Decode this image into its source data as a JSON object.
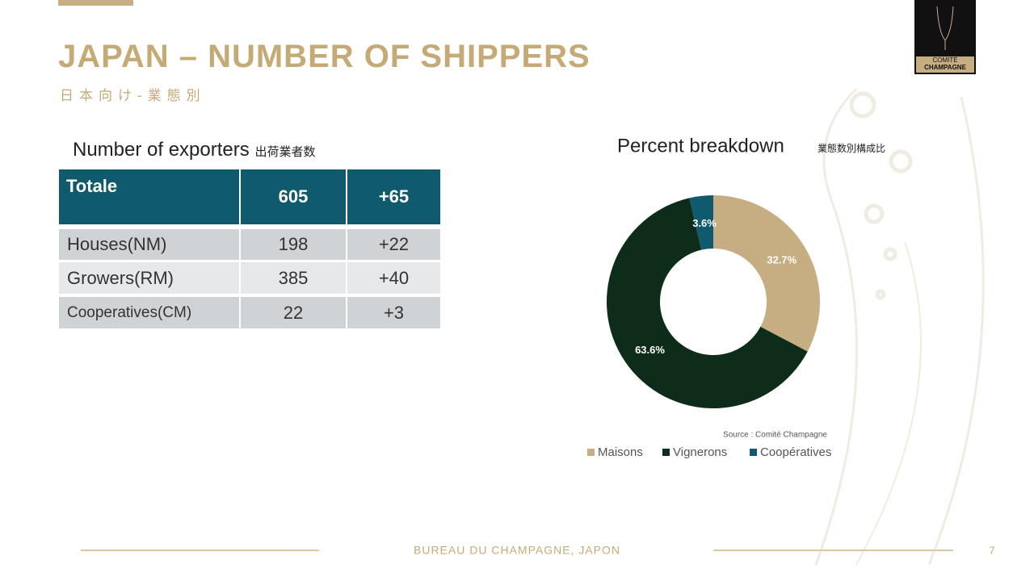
{
  "header": {
    "title": "JAPAN – NUMBER OF SHIPPERS",
    "subtitle": "日本向け-業態別"
  },
  "logo": {
    "line1": "COMITÉ",
    "line2": "CHAMPAGNE"
  },
  "table": {
    "title": "Number of exporters",
    "title_jp": "出荷業者数",
    "header": [
      "Totale",
      "605",
      "+65"
    ],
    "rows": [
      [
        "Houses(NM)",
        "198",
        "+22"
      ],
      [
        "Growers(RM)",
        "385",
        "+40"
      ],
      [
        "Cooperatives(CM)",
        "22",
        "+3"
      ]
    ]
  },
  "chart_data": {
    "type": "donut",
    "title": "Percent breakdown",
    "subtitle": "業態数別構成比",
    "categories": [
      "Maisons",
      "Vignerons",
      "Coopératives"
    ],
    "values": [
      32.7,
      63.6,
      3.6
    ],
    "value_labels": [
      "32.7%",
      "63.6%",
      "3.6%"
    ],
    "colors": [
      "#c6ae82",
      "#0d2c19",
      "#0f5a6c"
    ],
    "annotation": "Source : Comité Champagne",
    "legend": "bottom"
  },
  "footer": {
    "text": "BUREAU DU CHAMPAGNE, JAPON",
    "page": "7"
  }
}
